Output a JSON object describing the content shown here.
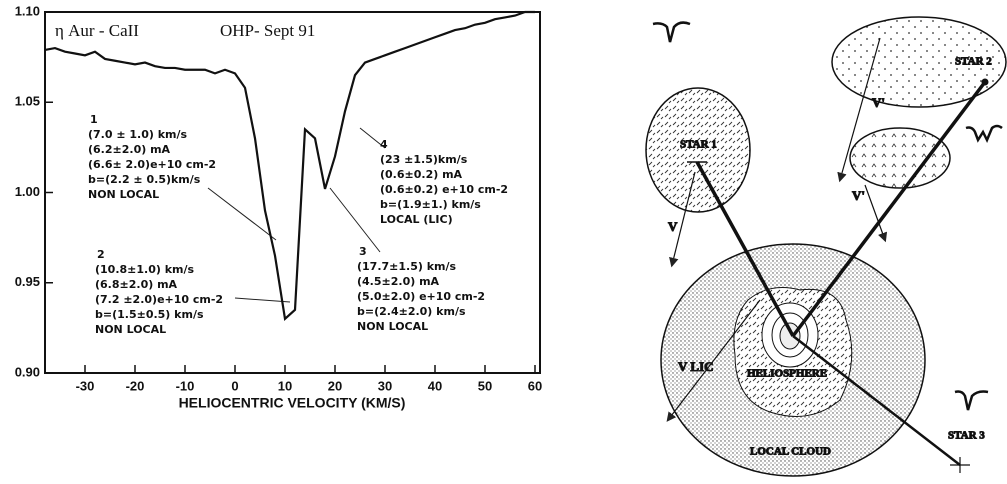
{
  "chart_data": {
    "type": "line",
    "title": "η Aur - CaII",
    "subtitle": "OHP- Sept 91",
    "x_label": "HELIOCENTRIC VELOCITY (KM/S)",
    "x": [
      -38,
      -36,
      -34,
      -32,
      -30,
      -28,
      -26,
      -24,
      -22,
      -20,
      -18,
      -16,
      -14,
      -12,
      -10,
      -8,
      -6,
      -4,
      -2,
      0,
      2,
      4,
      6,
      8,
      10,
      12,
      14,
      16,
      18,
      20,
      22,
      24,
      26,
      28,
      30,
      32,
      34,
      36,
      38,
      40,
      42,
      44,
      46,
      48,
      50,
      52,
      54,
      56,
      58,
      60
    ],
    "series": [
      {
        "color": "#111111",
        "values": [
          1.079,
          1.08,
          1.078,
          1.077,
          1.076,
          1.078,
          1.074,
          1.073,
          1.072,
          1.071,
          1.072,
          1.07,
          1.069,
          1.069,
          1.068,
          1.068,
          1.068,
          1.066,
          1.068,
          1.066,
          1.058,
          1.03,
          0.99,
          0.965,
          0.93,
          0.935,
          1.035,
          1.03,
          1.002,
          1.02,
          1.045,
          1.065,
          1.072,
          1.074,
          1.076,
          1.078,
          1.08,
          1.082,
          1.084,
          1.086,
          1.088,
          1.09,
          1.091,
          1.093,
          1.094,
          1.096,
          1.097,
          1.098,
          1.1,
          1.1
        ]
      }
    ],
    "xlim": [
      -38,
      61
    ],
    "ylim": [
      0.9,
      1.1
    ],
    "xticks": [
      -30,
      -20,
      -10,
      0,
      10,
      20,
      30,
      40,
      50,
      60
    ],
    "yticks": [
      {
        "value": 0.9,
        "label": "0.90"
      },
      {
        "value": 0.95,
        "label": "0.95"
      },
      {
        "value": 1.0,
        "label": "1.00"
      },
      {
        "value": 1.05,
        "label": "1.05"
      },
      {
        "value": 1.1,
        "label": "1.10"
      }
    ],
    "annotations": [
      {
        "label": "1",
        "lines": [
          "(7.0 ± 1.0) km/s",
          "(6.2±2.0) mA",
          "(6.6± 2.0)e+10 cm-2",
          "b=(2.2 ± 0.5)km/s",
          "NON LOCAL"
        ]
      },
      {
        "label": "2",
        "lines": [
          "(10.8±1.0) km/s",
          "(6.8±2.0) mA",
          "(7.2 ±2.0)e+10 cm-2",
          "b=(1.5±0.5) km/s",
          "NON LOCAL"
        ]
      },
      {
        "label": "3",
        "lines": [
          "(17.7±1.5) km/s",
          "(4.5±2.0) mA",
          "(5.0±2.0) e+10 cm-2",
          "b=(2.4±2.0) km/s",
          "NON LOCAL"
        ]
      },
      {
        "label": "4",
        "lines": [
          "(23 ±1.5)km/s",
          "(0.6±0.2) mA",
          "(0.6±0.2) e+10 cm-2",
          "b=(1.9±1.) km/s",
          "LOCAL (LIC)"
        ]
      }
    ]
  },
  "diagram": {
    "star1": "STAR 1",
    "star2": "STAR 2",
    "star3": "STAR 3",
    "v": "V",
    "v_prime_1": "V'",
    "v_prime_2": "V'",
    "v_lic": "V LIC",
    "heliosphere": "HELIOSPHERE",
    "local_cloud": "LOCAL CLOUD"
  }
}
